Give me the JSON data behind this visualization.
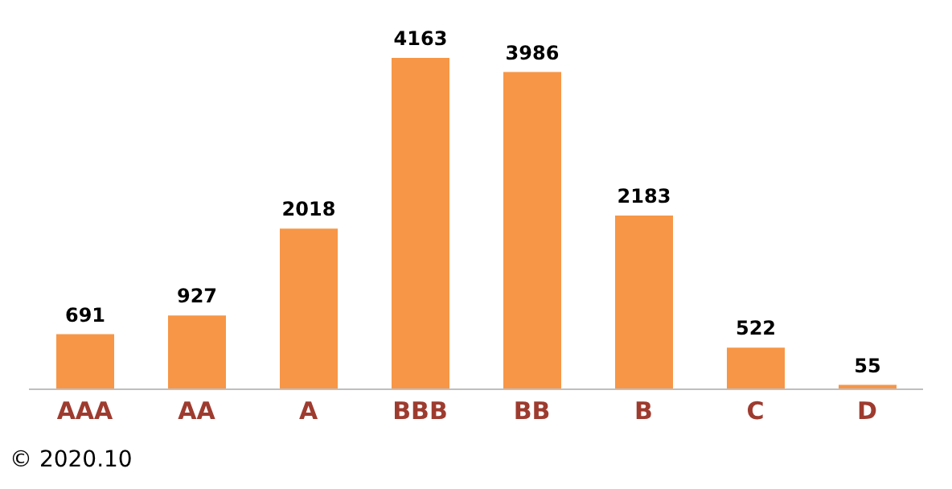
{
  "chart_data": {
    "type": "bar",
    "categories": [
      "AAA",
      "AA",
      "A",
      "BBB",
      "BB",
      "B",
      "C",
      "D"
    ],
    "values": [
      691,
      927,
      2018,
      4163,
      3986,
      2183,
      522,
      55
    ],
    "color": "#f79646",
    "data_labels": true,
    "annotations": [
      "© 2020.10"
    ]
  }
}
